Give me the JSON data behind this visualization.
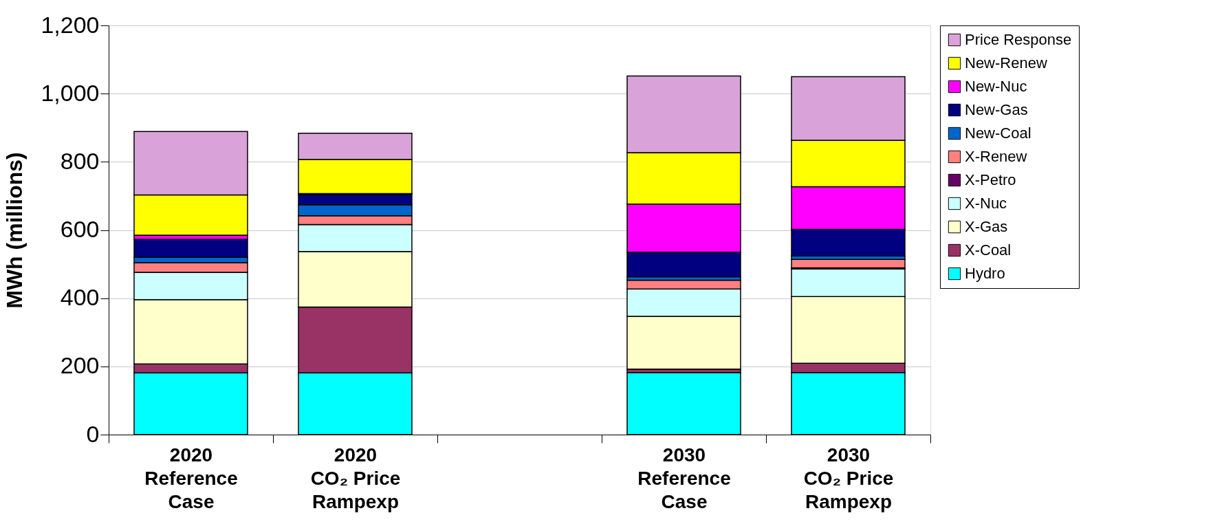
{
  "chart_data": {
    "type": "bar",
    "stacked": true,
    "ylabel": "MWh (millions)",
    "categories": [
      "2020\nReference\nCase",
      "2020\nCO₂ Price\nRampexp",
      null,
      "2030\nReference\nCase",
      "2030\nCO₂ Price\nRampexp"
    ],
    "ylim": [
      0,
      1200
    ],
    "yticks": [
      0,
      {
        "value": 200,
        "label": "200"
      },
      {
        "value": 400,
        "label": "400"
      },
      {
        "value": 600,
        "label": "600"
      },
      {
        "value": 800,
        "label": "800"
      },
      {
        "value": 1000,
        "label": "1,000"
      },
      {
        "value": 1200,
        "label": "1,200"
      }
    ],
    "grid": "y",
    "legend": "right",
    "series": [
      {
        "name": "Hydro",
        "color": "#00ffff",
        "values": [
          181,
          181,
          null,
          182,
          182
        ]
      },
      {
        "name": "X-Coal",
        "color": "#993366",
        "values": [
          26,
          193,
          null,
          10,
          27
        ]
      },
      {
        "name": "X-Gas",
        "color": "#ffffcc",
        "values": [
          189,
          163,
          null,
          155,
          196
        ]
      },
      {
        "name": "X-Nuc",
        "color": "#ccffff",
        "values": [
          80,
          79,
          null,
          80,
          81
        ]
      },
      {
        "name": "X-Petro",
        "color": "#660066",
        "values": [
          0,
          0,
          null,
          0,
          3
        ]
      },
      {
        "name": "X-Renew",
        "color": "#ff8080",
        "values": [
          28,
          26,
          null,
          26,
          25
        ]
      },
      {
        "name": "New-Coal",
        "color": "#0066cc",
        "values": [
          16,
          32,
          null,
          10,
          10
        ]
      },
      {
        "name": "New-Gas",
        "color": "#000080",
        "values": [
          53,
          30,
          null,
          72,
          78
        ]
      },
      {
        "name": "New-Nuc",
        "color": "#ff00ff",
        "values": [
          12,
          3,
          null,
          141,
          125
        ]
      },
      {
        "name": "New-Renew",
        "color": "#ffff00",
        "values": [
          118,
          100,
          null,
          151,
          136
        ]
      },
      {
        "name": "Price Response",
        "color": "#d9a3d9",
        "values": [
          186,
          77,
          null,
          225,
          187
        ]
      }
    ]
  }
}
